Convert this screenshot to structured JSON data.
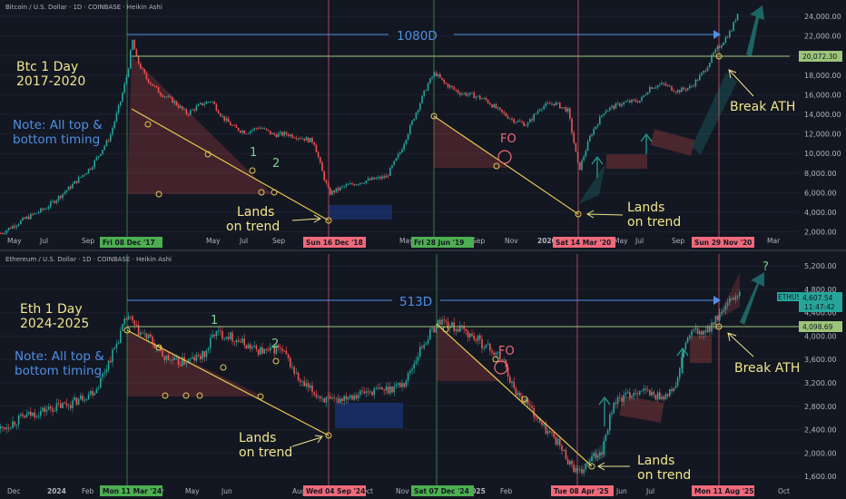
{
  "colors": {
    "background": "#131722",
    "up": "#26a69a",
    "down": "#ef5350",
    "trend": "#e6c84f",
    "span": "#4f8fe6",
    "ath": "#9cc47a",
    "annotation": "#f0e68c",
    "note": "#4f8fe6",
    "label_green": "#7fd18b",
    "label_red": "#f06a7a",
    "date_green": "#4caf50",
    "date_red": "#f06a7a",
    "grid": "#1e222d",
    "vline_green": "#3a7a4a",
    "vline_red": "#a84a5a"
  },
  "chart_data": [
    {
      "type": "candlestick",
      "title": "Bitcoin / U.S. Dollar · 1D · COINBASE · Heikin Ashi",
      "scale": "log",
      "ylim": [
        1900,
        30000
      ],
      "y_ticks": [
        "24,000.00",
        "22,000.00",
        "20,000.00",
        "18,000.00",
        "16,000.00",
        "14,000.00",
        "12,000.00",
        "10,000.00",
        "8,000.00",
        "6,000.00",
        "4,000.00",
        "2,000.00"
      ],
      "x_ticks": [
        "May",
        "Jul",
        "Sep",
        "Mar",
        "May",
        "Jul",
        "Sep",
        "Mar",
        "May",
        "Sep",
        "Nov",
        "2020",
        "May",
        "Jul",
        "Sep",
        "Mar"
      ],
      "date_tags": [
        {
          "label": "Fri 08 Dec '17",
          "color": "green"
        },
        {
          "label": "Sun 16 Dec '18",
          "color": "red"
        },
        {
          "label": "Fri 28 Jun '19",
          "color": "green"
        },
        {
          "label": "Sat 14 Mar '20",
          "color": "red"
        },
        {
          "label": "Sun 29 Nov '20",
          "color": "red"
        }
      ],
      "price_tag": {
        "value": "20,072.30"
      },
      "span_label": "1080D",
      "chart_label": [
        "Btc 1 Day",
        "2017-2020"
      ],
      "note": [
        "Note: All top &",
        "bottom timing"
      ],
      "wave_labels": [
        "1",
        "2"
      ],
      "fo_label": "FO",
      "lands": [
        [
          "Lands",
          "on trend"
        ],
        [
          "Lands",
          "on trend"
        ]
      ],
      "break_label": "Break ATH",
      "path": [
        [
          0,
          2000
        ],
        [
          25,
          2350
        ],
        [
          50,
          2700
        ],
        [
          75,
          3400
        ],
        [
          100,
          4400
        ],
        [
          120,
          6200
        ],
        [
          132,
          9500
        ],
        [
          140,
          13500
        ],
        [
          145,
          19500
        ],
        [
          150,
          15500
        ],
        [
          160,
          12500
        ],
        [
          175,
          10500
        ],
        [
          190,
          9500
        ],
        [
          205,
          8200
        ],
        [
          220,
          9100
        ],
        [
          232,
          9600
        ],
        [
          245,
          7800
        ],
        [
          258,
          6900
        ],
        [
          270,
          6600
        ],
        [
          285,
          7000
        ],
        [
          300,
          6400
        ],
        [
          315,
          6450
        ],
        [
          330,
          6200
        ],
        [
          345,
          5900
        ],
        [
          355,
          4000
        ],
        [
          362,
          3200
        ],
        [
          380,
          3500
        ],
        [
          400,
          3700
        ],
        [
          425,
          3900
        ],
        [
          440,
          5200
        ],
        [
          455,
          7800
        ],
        [
          470,
          11500
        ],
        [
          478,
          13300
        ],
        [
          488,
          11800
        ],
        [
          505,
          10500
        ],
        [
          520,
          10200
        ],
        [
          535,
          9600
        ],
        [
          550,
          8400
        ],
        [
          565,
          7600
        ],
        [
          580,
          7200
        ],
        [
          595,
          8900
        ],
        [
          610,
          9300
        ],
        [
          625,
          8500
        ],
        [
          637,
          4200
        ],
        [
          650,
          6400
        ],
        [
          665,
          8500
        ],
        [
          685,
          9300
        ],
        [
          705,
          9600
        ],
        [
          715,
          11200
        ],
        [
          730,
          11600
        ],
        [
          745,
          10700
        ],
        [
          760,
          11200
        ],
        [
          775,
          13500
        ],
        [
          785,
          16500
        ],
        [
          795,
          19000
        ],
        [
          805,
          22000
        ],
        [
          812,
          27000
        ]
      ]
    },
    {
      "type": "candlestick",
      "title": "Ethereum / U.S. Dollar · 1D · COINBASE · Heikin Ashi",
      "scale": "log",
      "ylim": [
        1450,
        5800
      ],
      "y_ticks": [
        "5,200.00",
        "4,800.00",
        "4,400.00",
        "4,000.00",
        "3,600.00",
        "3,200.00",
        "2,800.00",
        "2,400.00",
        "2,000.00",
        "1,600.00"
      ],
      "x_ticks": [
        "Dec",
        "2024",
        "Feb",
        "Apr",
        "May",
        "Jun",
        "Aug",
        "Oct",
        "Nov",
        "2025",
        "Feb",
        "May",
        "Jun",
        "Jul",
        "Sep",
        "Oct"
      ],
      "date_tags": [
        {
          "label": "Mon 11 Mar '24",
          "color": "green"
        },
        {
          "label": "Wed 04 Sep '24",
          "color": "red"
        },
        {
          "label": "Sat 07 Dec '24",
          "color": "green"
        },
        {
          "label": "Tue 08 Apr '25",
          "color": "red"
        },
        {
          "label": "Mon 11 Aug '25",
          "color": "red"
        }
      ],
      "price_tags": [
        {
          "value": "4,607.54",
          "sub": "11:47:42",
          "name": "ETHUSD"
        },
        {
          "value": "4,098.69"
        }
      ],
      "span_label": "513D",
      "chart_label": [
        "Eth 1 Day",
        "2024-2025"
      ],
      "note": [
        "Note: All top &",
        "bottom timing"
      ],
      "wave_labels": [
        "1",
        "2"
      ],
      "fo_label": "FO",
      "lands": [
        [
          "Lands",
          "on trend"
        ],
        [
          "Lands",
          "on trend"
        ]
      ],
      "break_label": "Break ATH",
      "question": "?",
      "path": [
        [
          0,
          2050
        ],
        [
          25,
          2200
        ],
        [
          50,
          2300
        ],
        [
          80,
          2400
        ],
        [
          105,
          2600
        ],
        [
          125,
          3300
        ],
        [
          135,
          3800
        ],
        [
          140,
          4050
        ],
        [
          150,
          3700
        ],
        [
          165,
          3500
        ],
        [
          180,
          3150
        ],
        [
          195,
          3050
        ],
        [
          210,
          3100
        ],
        [
          225,
          3200
        ],
        [
          235,
          3650
        ],
        [
          250,
          3600
        ],
        [
          265,
          3450
        ],
        [
          280,
          3300
        ],
        [
          295,
          3250
        ],
        [
          305,
          3350
        ],
        [
          315,
          3150
        ],
        [
          330,
          2700
        ],
        [
          350,
          2500
        ],
        [
          365,
          2400
        ],
        [
          380,
          2500
        ],
        [
          400,
          2550
        ],
        [
          425,
          2600
        ],
        [
          445,
          2700
        ],
        [
          462,
          3300
        ],
        [
          475,
          3700
        ],
        [
          485,
          3950
        ],
        [
          495,
          3800
        ],
        [
          510,
          3700
        ],
        [
          525,
          3500
        ],
        [
          540,
          3300
        ],
        [
          555,
          3050
        ],
        [
          565,
          2600
        ],
        [
          580,
          2400
        ],
        [
          595,
          2100
        ],
        [
          610,
          1950
        ],
        [
          625,
          1700
        ],
        [
          637,
          1550
        ],
        [
          650,
          1700
        ],
        [
          662,
          1800
        ],
        [
          675,
          2400
        ],
        [
          690,
          2500
        ],
        [
          705,
          2600
        ],
        [
          720,
          2500
        ],
        [
          735,
          2500
        ],
        [
          745,
          2700
        ],
        [
          755,
          3500
        ],
        [
          765,
          3700
        ],
        [
          775,
          3600
        ],
        [
          785,
          3900
        ],
        [
          795,
          4100
        ],
        [
          805,
          4450
        ],
        [
          815,
          4650
        ]
      ]
    }
  ]
}
